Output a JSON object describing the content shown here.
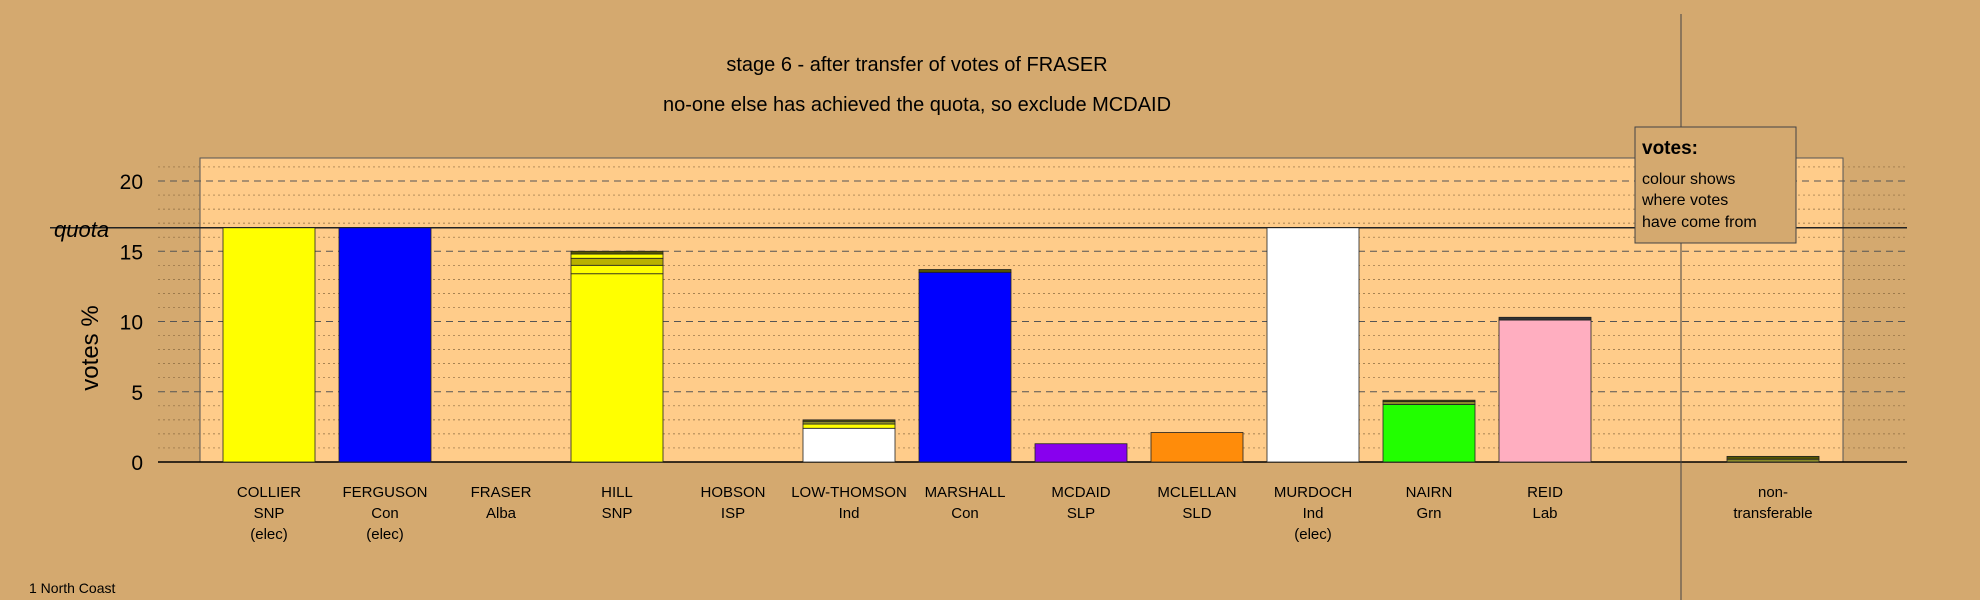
{
  "chart_data": {
    "type": "bar",
    "title": "stage 6 - after transfer of votes of FRASER",
    "subtitle": "no-one else has achieved the quota, so exclude MCDAID",
    "ylabel": "votes %",
    "ylim": [
      0,
      20
    ],
    "yticks": [
      0,
      5,
      10,
      15,
      20
    ],
    "quota": 16.67,
    "quota_label": "quota",
    "grid": true,
    "legend": {
      "title": "votes:",
      "lines": [
        "colour shows",
        "where votes",
        "have come from"
      ],
      "placement": "top-right"
    },
    "footnote": "1 North Coast",
    "categories": [
      {
        "name": "COLLIER",
        "party": "SNP",
        "note": "(elec)",
        "color": "#ffff00",
        "segments": [
          {
            "value": 16.67,
            "color": "#ffff00"
          }
        ]
      },
      {
        "name": "FERGUSON",
        "party": "Con",
        "note": "(elec)",
        "color": "#0000ff",
        "segments": [
          {
            "value": 16.67,
            "color": "#0000ff"
          }
        ]
      },
      {
        "name": "FRASER",
        "party": "Alba",
        "note": "",
        "color": "#aaaaaa",
        "segments": []
      },
      {
        "name": "HILL",
        "party": "SNP",
        "note": "",
        "color": "#ffff00",
        "segments": [
          {
            "value": 13.4,
            "color": "#ffff00"
          },
          {
            "value": 0.6,
            "color": "#ffff00"
          },
          {
            "value": 0.5,
            "color": "#b8b000"
          },
          {
            "value": 0.3,
            "color": "#ffff00"
          },
          {
            "value": 0.2,
            "color": "#555500"
          }
        ]
      },
      {
        "name": "HOBSON",
        "party": "ISP",
        "note": "",
        "color": "#aaaaaa",
        "segments": []
      },
      {
        "name": "LOW-THOMSON",
        "party": "Ind",
        "note": "",
        "color": "#ffffff",
        "segments": [
          {
            "value": 2.4,
            "color": "#ffffff"
          },
          {
            "value": 0.3,
            "color": "#ffff00"
          },
          {
            "value": 0.2,
            "color": "#8b8b2a"
          },
          {
            "value": 0.1,
            "color": "#555500"
          }
        ]
      },
      {
        "name": "MARSHALL",
        "party": "Con",
        "note": "",
        "color": "#0000ff",
        "segments": [
          {
            "value": 13.5,
            "color": "#0000ff"
          },
          {
            "value": 0.2,
            "color": "#555500"
          }
        ]
      },
      {
        "name": "MCDAID",
        "party": "SLP",
        "note": "",
        "color": "#8800ee",
        "segments": [
          {
            "value": 1.3,
            "color": "#8800ee"
          }
        ]
      },
      {
        "name": "MCLELLAN",
        "party": "SLD",
        "note": "",
        "color": "#ff8c0a",
        "segments": [
          {
            "value": 2.1,
            "color": "#ff8c0a"
          }
        ]
      },
      {
        "name": "MURDOCH",
        "party": "Ind",
        "note": "(elec)",
        "color": "#ffffff",
        "segments": [
          {
            "value": 16.67,
            "color": "#ffffff"
          }
        ]
      },
      {
        "name": "NAIRN",
        "party": "Grn",
        "note": "",
        "color": "#22ff00",
        "segments": [
          {
            "value": 4.1,
            "color": "#22ff00"
          },
          {
            "value": 0.2,
            "color": "#8b8b2a"
          },
          {
            "value": 0.1,
            "color": "#555500"
          }
        ]
      },
      {
        "name": "REID",
        "party": "Lab",
        "note": "",
        "color": "#ffaec0",
        "segments": [
          {
            "value": 10.1,
            "color": "#ffaec0"
          },
          {
            "value": 0.2,
            "color": "#333333"
          }
        ]
      }
    ],
    "nontransferable": {
      "label_lines": [
        "non-",
        "transferable"
      ],
      "segments": [
        {
          "value": 0.2,
          "color": "#8b8b2a"
        },
        {
          "value": 0.2,
          "color": "#555500"
        }
      ]
    }
  }
}
